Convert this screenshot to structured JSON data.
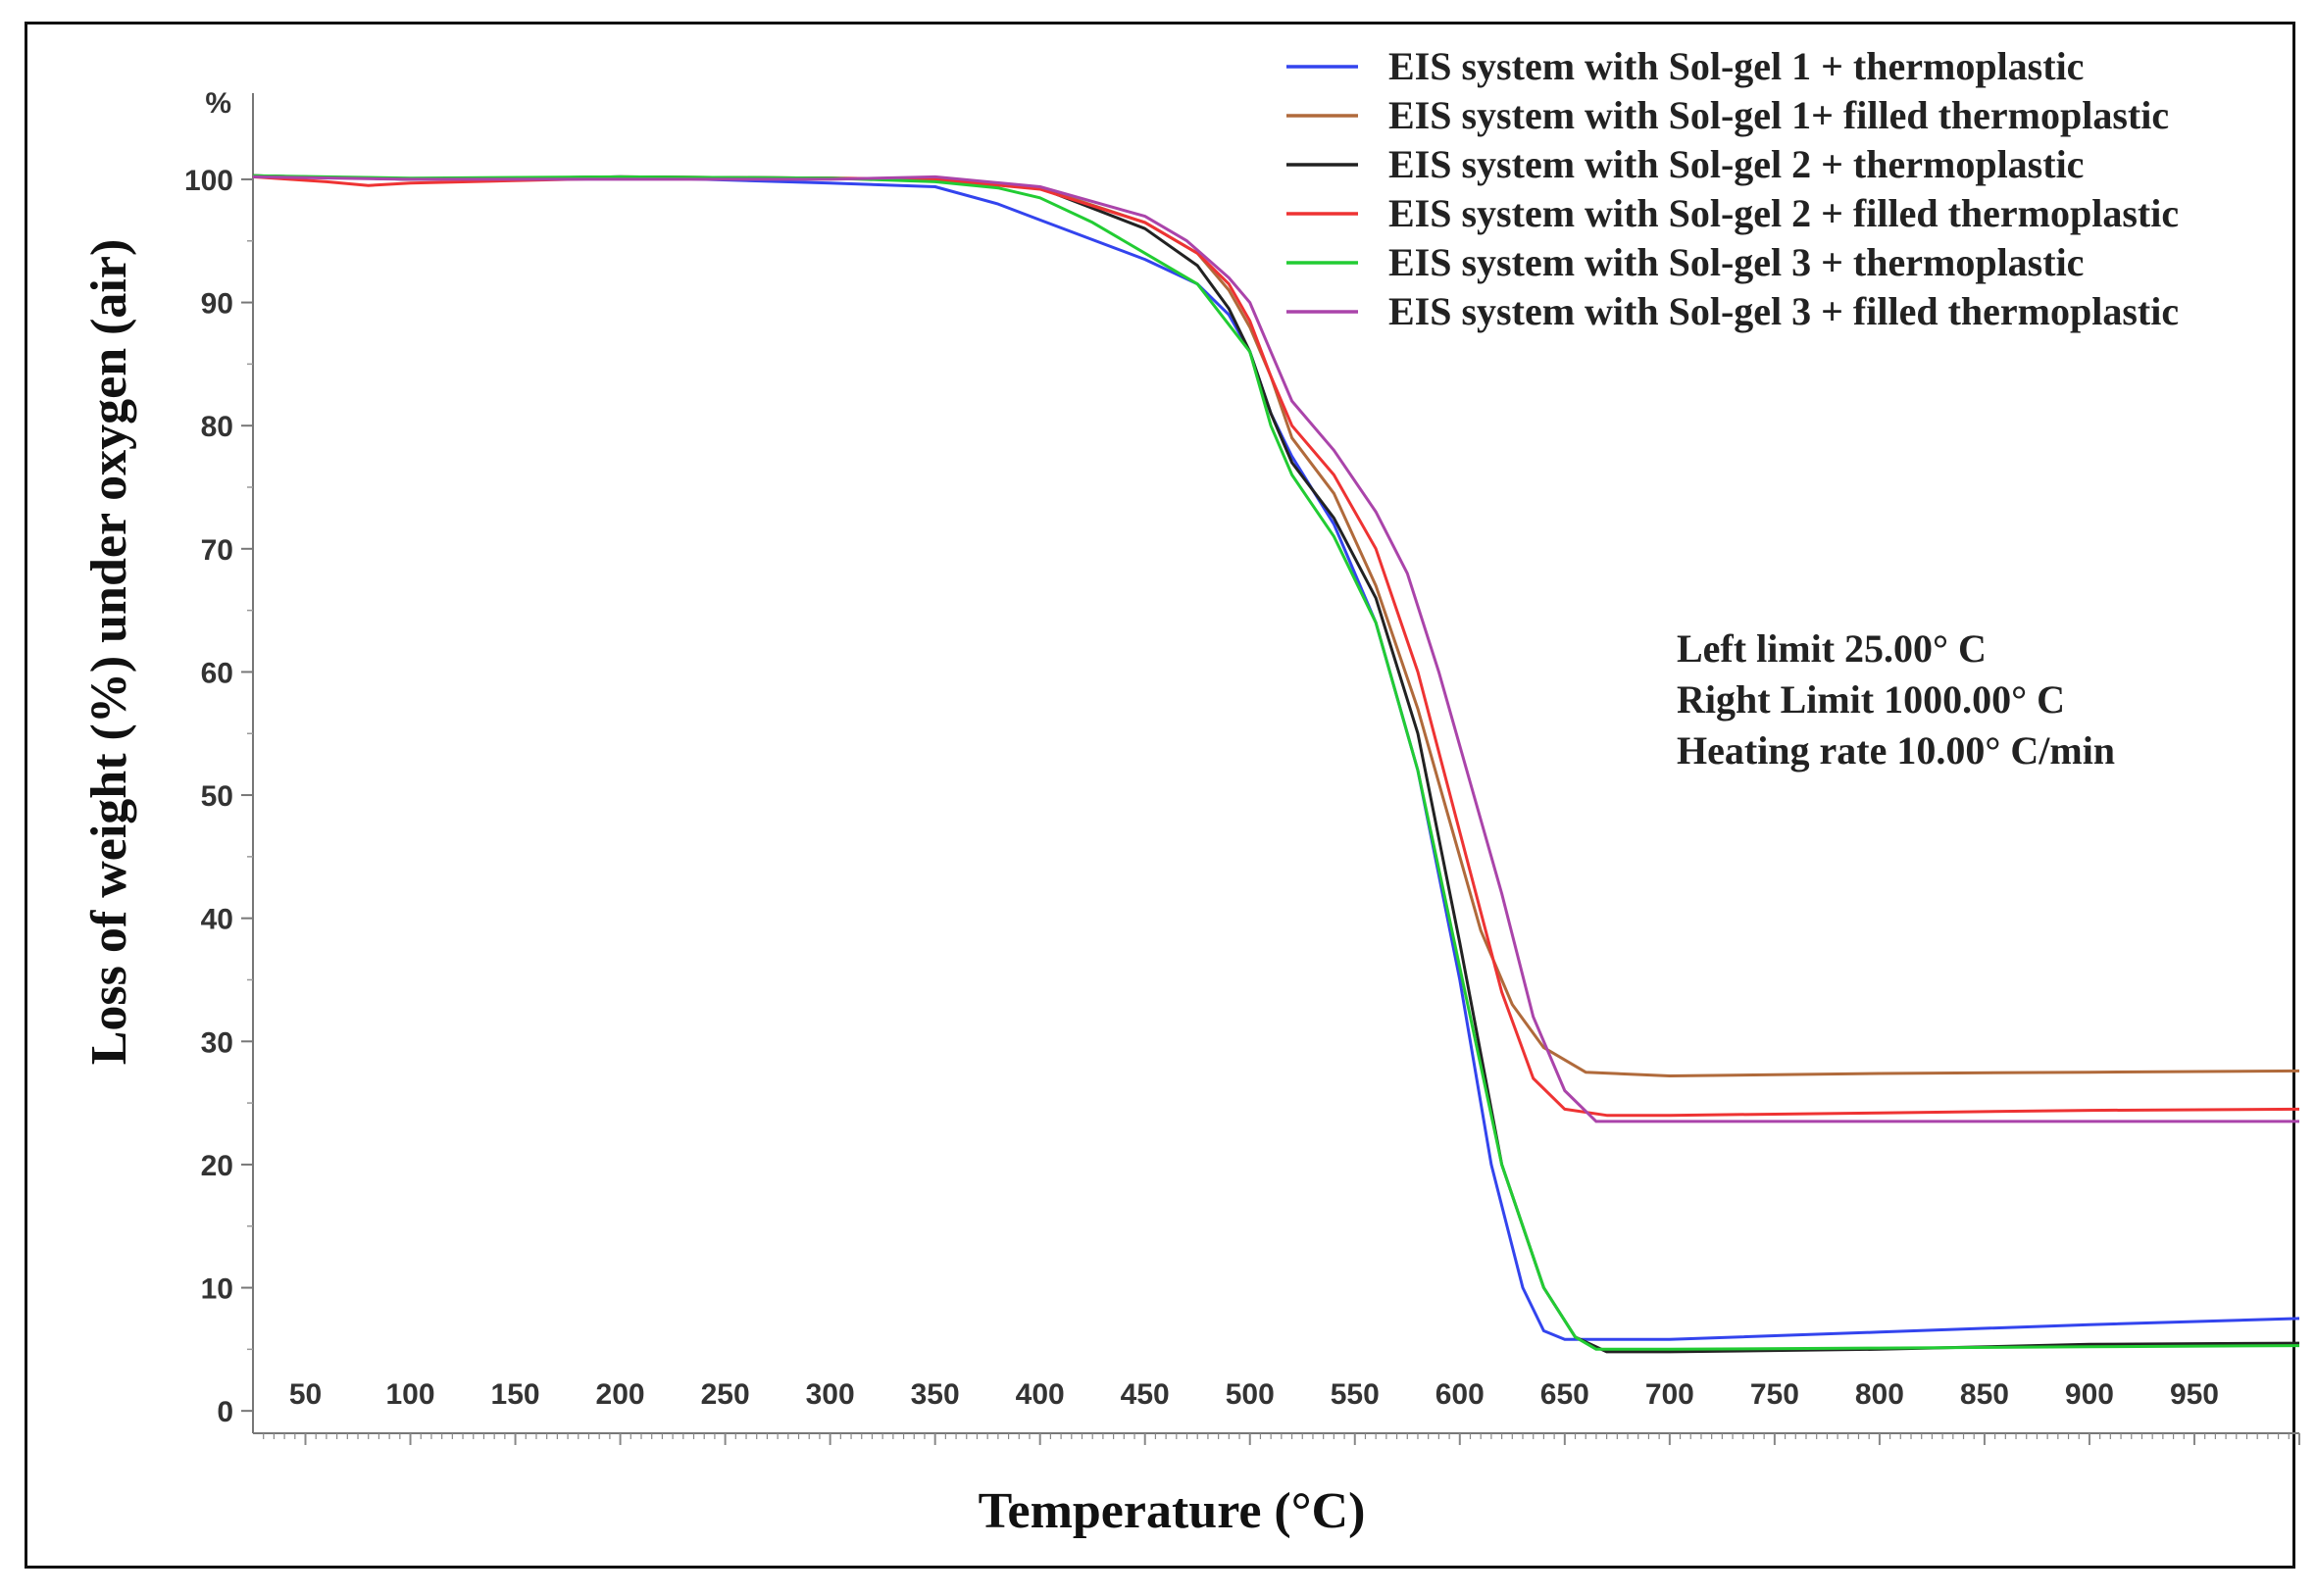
{
  "chart_data": {
    "type": "line",
    "title": "",
    "xlabel": "Temperature (°C)",
    "ylabel": "Loss of weight (%) under oxygen (air)",
    "yunit": "%",
    "xlim": [
      25,
      1000
    ],
    "ylim": [
      -1.5,
      107
    ],
    "xticks": [
      50,
      100,
      150,
      200,
      250,
      300,
      350,
      400,
      450,
      500,
      550,
      600,
      650,
      700,
      750,
      800,
      850,
      900,
      950
    ],
    "yticks": [
      0,
      10,
      20,
      30,
      40,
      50,
      60,
      70,
      80,
      90,
      100
    ],
    "series": [
      {
        "name": "EIS system with Sol-gel 1 + thermoplastic",
        "color": "#3344ee",
        "points": [
          [
            25,
            100.3
          ],
          [
            100,
            100
          ],
          [
            200,
            100.2
          ],
          [
            300,
            99.7
          ],
          [
            350,
            99.4
          ],
          [
            380,
            98
          ],
          [
            400,
            96.7
          ],
          [
            450,
            93.5
          ],
          [
            475,
            91.5
          ],
          [
            490,
            89
          ],
          [
            500,
            86
          ],
          [
            510,
            81
          ],
          [
            520,
            77.5
          ],
          [
            540,
            72
          ],
          [
            560,
            64
          ],
          [
            580,
            52
          ],
          [
            600,
            35
          ],
          [
            615,
            20
          ],
          [
            630,
            10
          ],
          [
            640,
            6.5
          ],
          [
            650,
            5.8
          ],
          [
            700,
            5.8
          ],
          [
            800,
            6.4
          ],
          [
            900,
            7
          ],
          [
            1000,
            7.5
          ]
        ]
      },
      {
        "name": "EIS system with Sol-gel 1+ filled thermoplastic",
        "color": "#b06a3b",
        "points": [
          [
            25,
            100.3
          ],
          [
            100,
            100
          ],
          [
            200,
            100.2
          ],
          [
            300,
            100.1
          ],
          [
            350,
            100
          ],
          [
            400,
            99.3
          ],
          [
            450,
            96.5
          ],
          [
            475,
            94
          ],
          [
            490,
            91
          ],
          [
            500,
            88
          ],
          [
            510,
            84
          ],
          [
            520,
            79
          ],
          [
            540,
            74.5
          ],
          [
            560,
            67
          ],
          [
            580,
            57
          ],
          [
            595,
            48
          ],
          [
            610,
            39
          ],
          [
            625,
            33
          ],
          [
            640,
            29.5
          ],
          [
            660,
            27.5
          ],
          [
            700,
            27.2
          ],
          [
            800,
            27.4
          ],
          [
            900,
            27.5
          ],
          [
            1000,
            27.6
          ]
        ]
      },
      {
        "name": "EIS system with Sol-gel  2 + thermoplastic",
        "color": "#222222",
        "points": [
          [
            25,
            100.3
          ],
          [
            100,
            100
          ],
          [
            200,
            100.2
          ],
          [
            300,
            100.1
          ],
          [
            350,
            99.9
          ],
          [
            400,
            99.3
          ],
          [
            450,
            96
          ],
          [
            475,
            93
          ],
          [
            490,
            89.5
          ],
          [
            500,
            86
          ],
          [
            510,
            81
          ],
          [
            520,
            77
          ],
          [
            540,
            72.5
          ],
          [
            560,
            66
          ],
          [
            580,
            55
          ],
          [
            600,
            38
          ],
          [
            620,
            20
          ],
          [
            640,
            10
          ],
          [
            655,
            6
          ],
          [
            670,
            4.8
          ],
          [
            700,
            4.8
          ],
          [
            800,
            5
          ],
          [
            900,
            5.4
          ],
          [
            1000,
            5.5
          ]
        ]
      },
      {
        "name": "EIS system with Sol-gel 2 + filled thermoplastic",
        "color": "#ee3333",
        "points": [
          [
            25,
            100.2
          ],
          [
            60,
            99.8
          ],
          [
            80,
            99.5
          ],
          [
            100,
            99.7
          ],
          [
            200,
            100.1
          ],
          [
            300,
            100.1
          ],
          [
            350,
            100
          ],
          [
            400,
            99.2
          ],
          [
            450,
            96.5
          ],
          [
            475,
            94
          ],
          [
            490,
            91.5
          ],
          [
            500,
            88.5
          ],
          [
            510,
            84
          ],
          [
            520,
            80
          ],
          [
            540,
            76
          ],
          [
            560,
            70
          ],
          [
            580,
            60
          ],
          [
            600,
            47
          ],
          [
            620,
            34
          ],
          [
            635,
            27
          ],
          [
            650,
            24.5
          ],
          [
            670,
            24
          ],
          [
            700,
            24
          ],
          [
            800,
            24.2
          ],
          [
            900,
            24.4
          ],
          [
            1000,
            24.5
          ]
        ]
      },
      {
        "name": "EIS system with Sol-gel  3 + thermoplastic",
        "color": "#22cc33",
        "points": [
          [
            25,
            100.3
          ],
          [
            100,
            100.1
          ],
          [
            200,
            100.2
          ],
          [
            300,
            100.1
          ],
          [
            350,
            99.8
          ],
          [
            380,
            99.3
          ],
          [
            400,
            98.5
          ],
          [
            425,
            96.5
          ],
          [
            450,
            94
          ],
          [
            475,
            91.5
          ],
          [
            500,
            86
          ],
          [
            510,
            80
          ],
          [
            520,
            76
          ],
          [
            540,
            71
          ],
          [
            560,
            64
          ],
          [
            580,
            52
          ],
          [
            600,
            36
          ],
          [
            620,
            20
          ],
          [
            640,
            10
          ],
          [
            655,
            6
          ],
          [
            665,
            5
          ],
          [
            700,
            5
          ],
          [
            800,
            5.1
          ],
          [
            900,
            5.2
          ],
          [
            1000,
            5.3
          ]
        ]
      },
      {
        "name": "EIS system with Sol-gel 3 + filled thermoplastic",
        "color": "#aa44aa",
        "points": [
          [
            25,
            100.2
          ],
          [
            100,
            100
          ],
          [
            200,
            100
          ],
          [
            300,
            100
          ],
          [
            350,
            100.2
          ],
          [
            400,
            99.4
          ],
          [
            450,
            97
          ],
          [
            470,
            95
          ],
          [
            490,
            92
          ],
          [
            500,
            90
          ],
          [
            510,
            86
          ],
          [
            520,
            82
          ],
          [
            540,
            78
          ],
          [
            560,
            73
          ],
          [
            575,
            68
          ],
          [
            590,
            60
          ],
          [
            605,
            51
          ],
          [
            620,
            42
          ],
          [
            635,
            32
          ],
          [
            650,
            26
          ],
          [
            665,
            23.5
          ],
          [
            700,
            23.5
          ],
          [
            800,
            23.5
          ],
          [
            900,
            23.5
          ],
          [
            1000,
            23.5
          ]
        ]
      }
    ],
    "annotations": [
      "Left limit    25.00°  C",
      "Right Limit 1000.00°  C",
      "Heating rate 10.00°  C/min"
    ],
    "legend_position": "top-right"
  }
}
